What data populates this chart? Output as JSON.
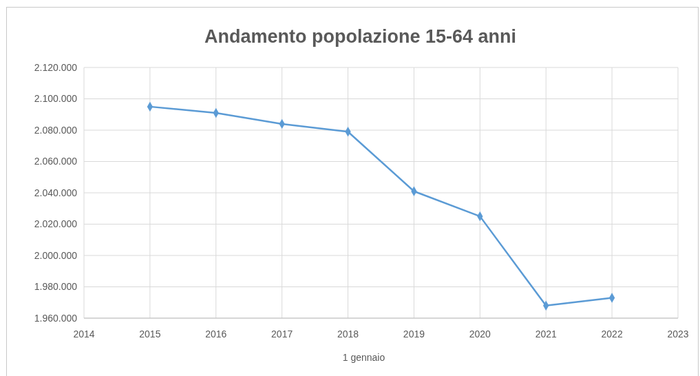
{
  "chart_data": {
    "type": "line",
    "title": "Andamento popolazione 15-64 anni",
    "xlabel": "1 gennaio",
    "x": [
      2015,
      2016,
      2017,
      2018,
      2019,
      2020,
      2021,
      2022
    ],
    "series": [
      {
        "color": "#5b9bd5",
        "values": [
          2095000,
          2091000,
          2084000,
          2079000,
          2041000,
          2025000,
          1968000,
          1973000
        ]
      }
    ],
    "xlim": [
      2014,
      2023
    ],
    "xticks": [
      2014,
      2015,
      2016,
      2017,
      2018,
      2019,
      2020,
      2021,
      2022,
      2023
    ],
    "ylim": [
      1960000,
      2120000
    ],
    "yticks": [
      {
        "value": 1960000,
        "label": "1.960.000"
      },
      {
        "value": 1980000,
        "label": "1.980.000"
      },
      {
        "value": 2000000,
        "label": "2.000.000"
      },
      {
        "value": 2020000,
        "label": "2.020.000"
      },
      {
        "value": 2040000,
        "label": "2.040.000"
      },
      {
        "value": 2060000,
        "label": "2.060.000"
      },
      {
        "value": 2080000,
        "label": "2.080.000"
      },
      {
        "value": 2100000,
        "label": "2.100.000"
      },
      {
        "value": 2120000,
        "label": "2.120.000"
      }
    ],
    "grid": true,
    "marker": "diamond"
  }
}
